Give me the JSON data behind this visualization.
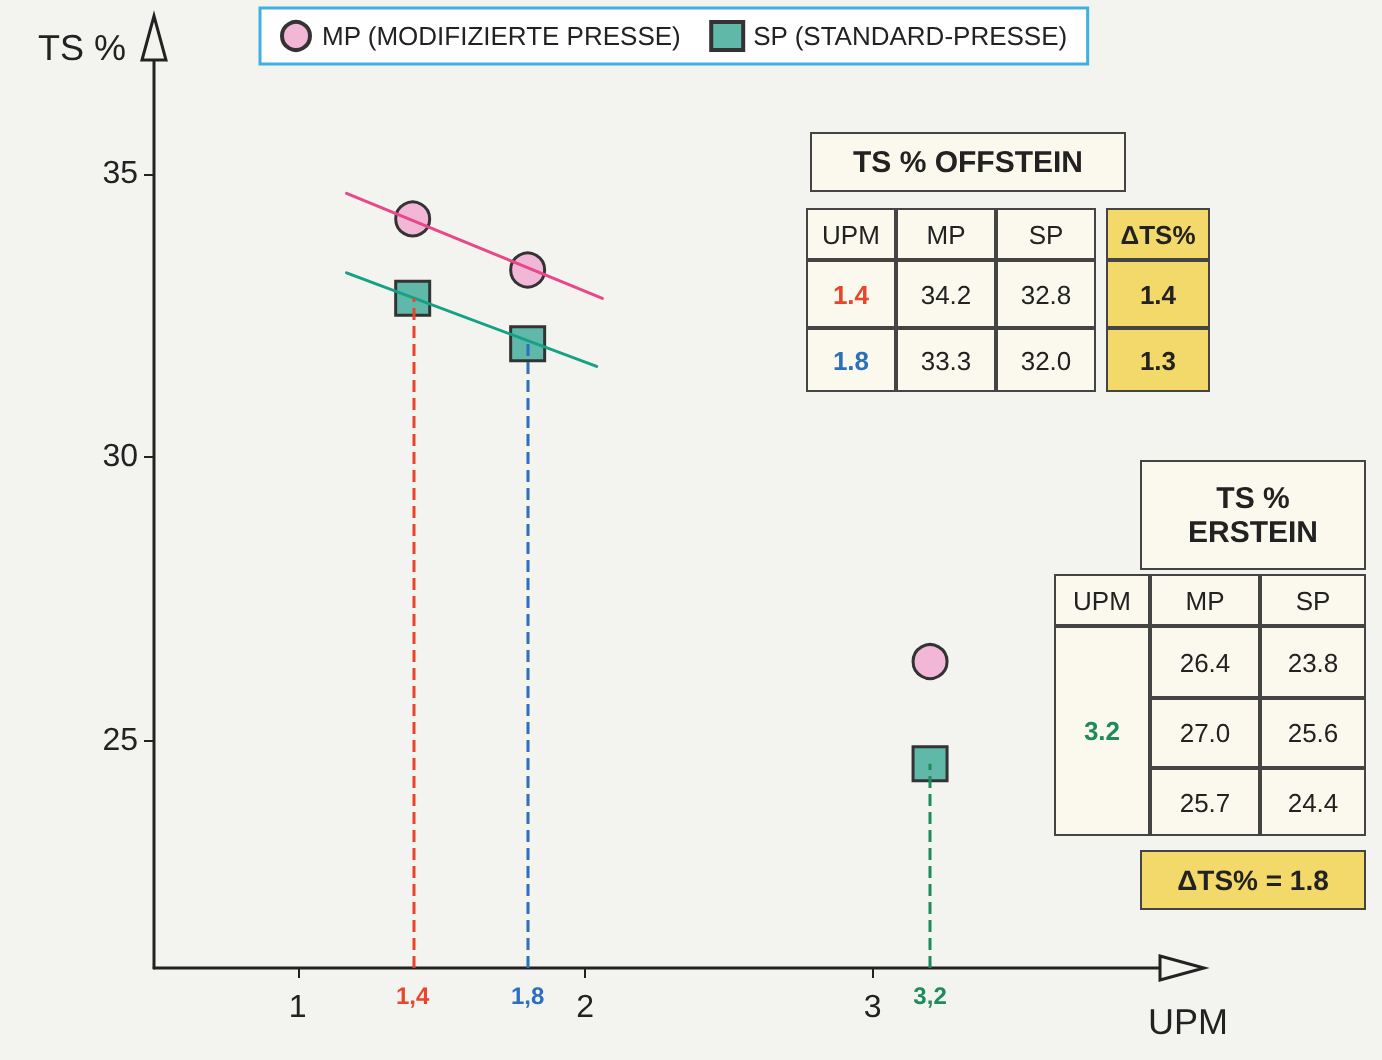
{
  "chart_data": {
    "type": "scatter",
    "xlabel": "UPM",
    "ylabel": "TS %",
    "xlim": [
      0.5,
      4.0
    ],
    "ylim": [
      21,
      37
    ],
    "xticks": [
      1,
      2,
      3
    ],
    "yticks": [
      25,
      30,
      35
    ],
    "grid": false,
    "legend": "top",
    "series": [
      {
        "name": "MP (MODIFIZIERTE PRESSE)",
        "color": "#f2b6d6",
        "marker": "circle",
        "x": [
          1.4,
          1.8,
          3.2
        ],
        "values": [
          34.2,
          33.3,
          26.4
        ]
      },
      {
        "name": "SP (STANDARD-PRESSE)",
        "color": "#5fb8a8",
        "marker": "square",
        "x": [
          1.4,
          1.8,
          3.2
        ],
        "values": [
          32.8,
          32.0,
          24.6
        ]
      },
      {
        "type": "line",
        "color": "#e8488a",
        "x": [
          1.17,
          2.06
        ],
        "values": [
          34.65,
          32.8
        ]
      },
      {
        "type": "line",
        "color": "#16a085",
        "x": [
          1.17,
          2.04
        ],
        "values": [
          33.25,
          31.6
        ]
      }
    ],
    "ref_lines": [
      {
        "axis": "x",
        "value": 1.4,
        "label": "1,4",
        "color": "#e8452c",
        "line_style": "dashed"
      },
      {
        "axis": "x",
        "value": 1.8,
        "label": "1,8",
        "color": "#2a6fc0",
        "line_style": "dashed"
      },
      {
        "axis": "x",
        "value": 3.2,
        "label": "3,2",
        "color": "#1f8a5a",
        "line_style": "dashed"
      }
    ],
    "annotations": [
      "TS % OFFSTEIN",
      "UPM",
      "MP",
      "SP",
      "ΔTS%",
      "1.4",
      "34.2",
      "32.8",
      "1.4",
      "1.8",
      "33.3",
      "32.0",
      "1.3",
      "TS % ERSTEIN",
      "UPM",
      "MP",
      "SP",
      "3.2",
      "26.4",
      "23.8",
      "27.0",
      "25.6",
      "25.7",
      "24.4",
      "ΔTS% = 1.8"
    ]
  }
}
